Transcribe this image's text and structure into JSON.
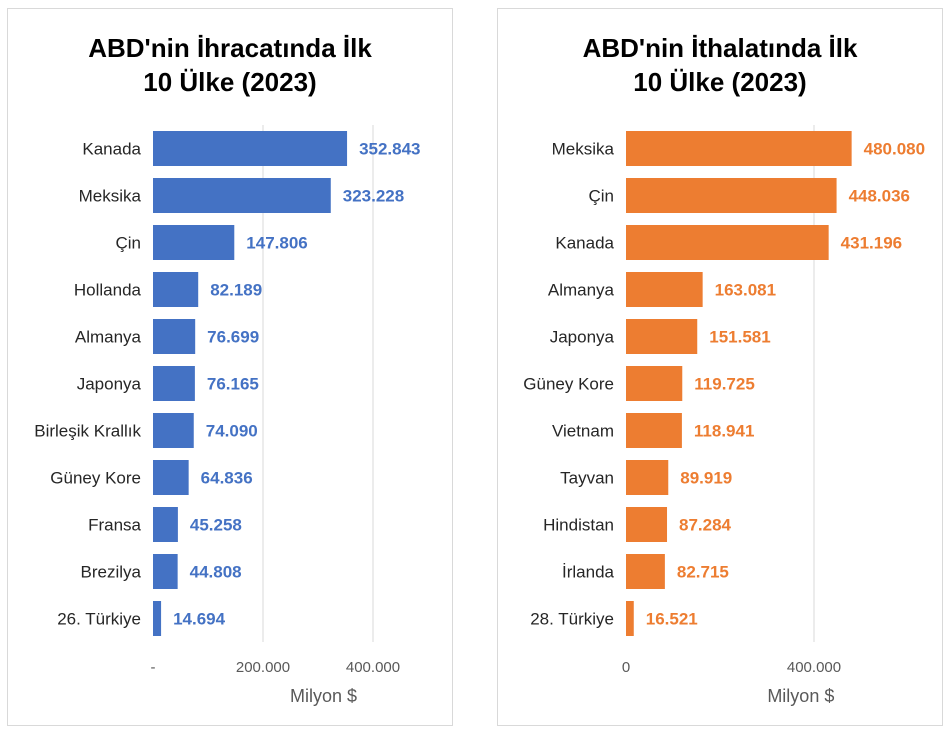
{
  "chart_data": [
    {
      "type": "bar",
      "orientation": "horizontal",
      "title_line1": "ABD'nin İhracatında İlk",
      "title_line2": "10 Ülke (2023)",
      "xlabel": "Milyon $",
      "categories": [
        "Kanada",
        "Meksika",
        "Çin",
        "Hollanda",
        "Almanya",
        "Japonya",
        "Birleşik Krallık",
        "Güney Kore",
        "Fransa",
        "Brezilya",
        "26. Türkiye"
      ],
      "values": [
        352843,
        323228,
        147806,
        82189,
        76699,
        76165,
        74090,
        64836,
        45258,
        44808,
        14694
      ],
      "value_labels": [
        "352.843",
        "323.228",
        "147.806",
        "82.189",
        "76.699",
        "76.165",
        "74.090",
        "64.836",
        "45.258",
        "44.808",
        "14.694"
      ],
      "xticks": [
        0,
        200000,
        400000
      ],
      "xtick_labels": [
        "-",
        "200.000",
        "400.000"
      ],
      "xlim": [
        0,
        500000
      ],
      "grid": true,
      "color": "#4472C4"
    },
    {
      "type": "bar",
      "orientation": "horizontal",
      "title_line1": "ABD'nin İthalatında İlk",
      "title_line2": "10 Ülke (2023)",
      "xlabel": "Milyon $",
      "categories": [
        "Meksika",
        "Çin",
        "Kanada",
        "Almanya",
        "Japonya",
        "Güney Kore",
        "Vietnam",
        "Tayvan",
        "Hindistan",
        "İrlanda",
        "28. Türkiye"
      ],
      "values": [
        480080,
        448036,
        431196,
        163081,
        151581,
        119725,
        118941,
        89919,
        87284,
        82715,
        16521
      ],
      "value_labels": [
        "480.080",
        "448.036",
        "431.196",
        "163.081",
        "151.581",
        "119.725",
        "118.941",
        "89.919",
        "87.284",
        "82.715",
        "16.521"
      ],
      "xticks": [
        0,
        400000
      ],
      "xtick_labels": [
        "0",
        "400.000"
      ],
      "xlim": [
        0,
        600000
      ],
      "grid": true,
      "color": "#ED7D31"
    }
  ]
}
